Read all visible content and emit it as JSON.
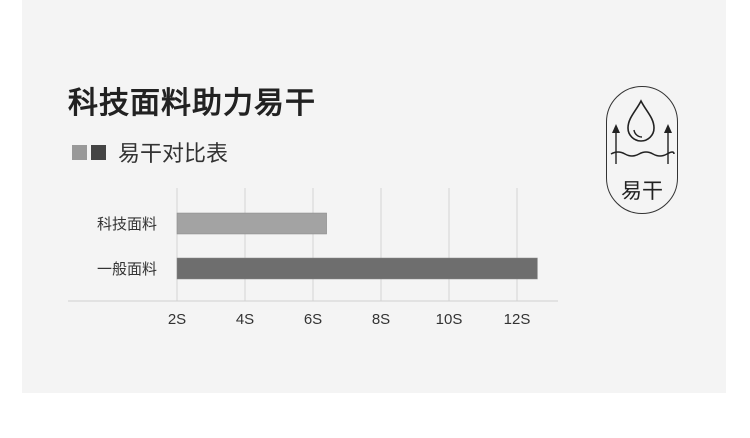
{
  "title": "科技面料助力易干",
  "legend": {
    "label": "易干对比表",
    "colors": [
      "#999999",
      "#444444"
    ]
  },
  "badge": {
    "label": "易干",
    "icon": "water-drop-evaporation-icon"
  },
  "chart_data": {
    "type": "bar",
    "orientation": "horizontal",
    "categories": [
      "科技面料",
      "一般面料"
    ],
    "values": [
      6.4,
      12.6
    ],
    "colors": [
      "#a3a3a3",
      "#6e6e6e"
    ],
    "xticks": [
      "2S",
      "4S",
      "6S",
      "8S",
      "10S",
      "12S"
    ],
    "xtick_values": [
      2,
      4,
      6,
      8,
      10,
      12
    ],
    "xlim": [
      2,
      12.6
    ],
    "grid": true
  }
}
